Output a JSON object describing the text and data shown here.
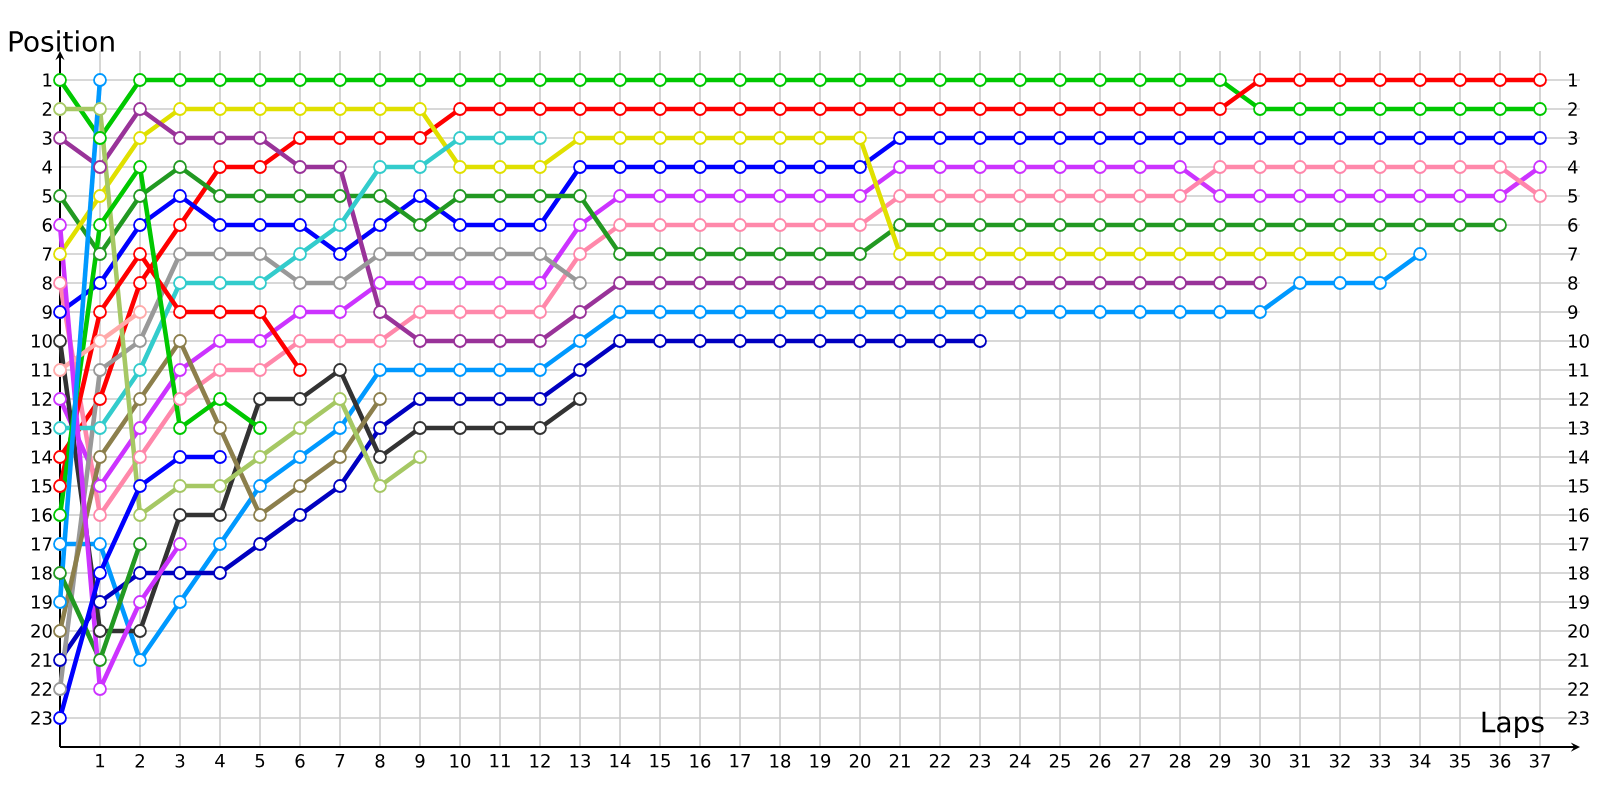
{
  "chart_data": {
    "type": "line",
    "xlabel": "Laps",
    "ylabel": "Position",
    "x": [
      0,
      1,
      2,
      3,
      4,
      5,
      6,
      7,
      8,
      9,
      10,
      11,
      12,
      13,
      14,
      15,
      16,
      17,
      18,
      19,
      20,
      21,
      22,
      23,
      24,
      25,
      26,
      27,
      28,
      29,
      30,
      31,
      32,
      33,
      34,
      35,
      36,
      37
    ],
    "xlim": [
      0,
      38
    ],
    "xticks": [
      1,
      2,
      3,
      4,
      5,
      6,
      7,
      8,
      9,
      10,
      11,
      12,
      13,
      14,
      15,
      16,
      17,
      18,
      19,
      20,
      21,
      22,
      23,
      24,
      25,
      26,
      27,
      28,
      29,
      30,
      31,
      32,
      33,
      34,
      35,
      36,
      37
    ],
    "ylim": [
      24,
      0
    ],
    "yticks": [
      1,
      2,
      3,
      4,
      5,
      6,
      7,
      8,
      9,
      10,
      11,
      12,
      13,
      14,
      15,
      16,
      17,
      18,
      19,
      20,
      21,
      22,
      23
    ],
    "y2lim": [
      24,
      0
    ],
    "y2ticks": [
      1,
      2,
      3,
      4,
      5,
      6,
      7,
      8,
      9,
      10,
      11,
      12,
      13,
      14,
      15,
      16,
      17,
      18,
      19,
      20,
      21,
      22,
      23
    ],
    "grid": true,
    "marker": "circle",
    "line_style": "solid",
    "series": [
      {
        "color": "#00c800",
        "values": [
          1,
          3,
          1,
          1,
          1,
          1,
          1,
          1,
          1,
          1,
          1,
          1,
          1,
          1,
          1,
          1,
          1,
          1,
          1,
          1,
          1,
          1,
          1,
          1,
          1,
          1,
          1,
          1,
          1,
          1,
          2,
          2,
          2,
          2,
          2,
          2,
          2,
          2
        ]
      },
      {
        "color": "#ff0000",
        "values": [
          14,
          12,
          8,
          6,
          4,
          4,
          3,
          3,
          3,
          3,
          2,
          2,
          2,
          2,
          2,
          2,
          2,
          2,
          2,
          2,
          2,
          2,
          2,
          2,
          2,
          2,
          2,
          2,
          2,
          2,
          1,
          1,
          1,
          1,
          1,
          1,
          1,
          1
        ]
      },
      {
        "color": "#0000ff",
        "values": [
          9,
          8,
          6,
          5,
          6,
          6,
          6,
          7,
          6,
          5,
          6,
          6,
          6,
          4,
          4,
          4,
          4,
          4,
          4,
          4,
          4,
          3,
          3,
          3,
          3,
          3,
          3,
          3,
          3,
          3,
          3,
          3,
          3,
          3,
          3,
          3,
          3,
          3
        ]
      },
      {
        "color": "#cc33ff",
        "values": [
          12,
          15,
          13,
          11,
          10,
          10,
          9,
          9,
          8,
          8,
          8,
          8,
          8,
          6,
          5,
          5,
          5,
          5,
          5,
          5,
          5,
          4,
          4,
          4,
          4,
          4,
          4,
          4,
          4,
          5,
          5,
          5,
          5,
          5,
          5,
          5,
          5,
          4
        ]
      },
      {
        "color": "#ff88aa",
        "values": [
          8,
          16,
          14,
          12,
          11,
          11,
          10,
          10,
          10,
          9,
          9,
          9,
          9,
          7,
          6,
          6,
          6,
          6,
          6,
          6,
          6,
          5,
          5,
          5,
          5,
          5,
          5,
          5,
          5,
          4,
          4,
          4,
          4,
          4,
          4,
          4,
          4,
          5
        ]
      },
      {
        "color": "#229922",
        "values": [
          5,
          7,
          5,
          4,
          5,
          5,
          5,
          5,
          5,
          6,
          5,
          5,
          5,
          5,
          7,
          7,
          7,
          7,
          7,
          7,
          7,
          6,
          6,
          6,
          6,
          6,
          6,
          6,
          6,
          6,
          6,
          6,
          6,
          6,
          6,
          6,
          6,
          null
        ]
      },
      {
        "color": "#e0e000",
        "values": [
          7,
          5,
          3,
          2,
          2,
          2,
          2,
          2,
          2,
          2,
          4,
          4,
          4,
          3,
          3,
          3,
          3,
          3,
          3,
          3,
          3,
          7,
          7,
          7,
          7,
          7,
          7,
          7,
          7,
          7,
          7,
          7,
          7,
          7,
          null,
          null,
          null,
          null
        ]
      },
      {
        "color": "#993399",
        "values": [
          3,
          4,
          2,
          3,
          3,
          3,
          4,
          4,
          9,
          10,
          10,
          10,
          10,
          9,
          8,
          8,
          8,
          8,
          8,
          8,
          8,
          8,
          8,
          8,
          8,
          8,
          8,
          8,
          8,
          8,
          8,
          null,
          null,
          null,
          null,
          null,
          null,
          null
        ]
      },
      {
        "color": "#0099ff",
        "values": [
          17,
          17,
          21,
          19,
          17,
          15,
          14,
          13,
          11,
          11,
          11,
          11,
          11,
          10,
          9,
          9,
          9,
          9,
          9,
          9,
          9,
          9,
          9,
          9,
          9,
          9,
          9,
          9,
          9,
          9,
          9,
          8,
          8,
          8,
          7,
          null,
          null,
          null
        ]
      },
      {
        "color": "#0000c0",
        "values": [
          21,
          19,
          18,
          18,
          18,
          17,
          16,
          15,
          13,
          12,
          12,
          12,
          12,
          11,
          10,
          10,
          10,
          10,
          10,
          10,
          10,
          10,
          10,
          10,
          null,
          null,
          null,
          null,
          null,
          null,
          null,
          null,
          null,
          null,
          null,
          null,
          null,
          null
        ]
      },
      {
        "color": "#333333",
        "values": [
          10,
          20,
          20,
          16,
          16,
          12,
          12,
          11,
          14,
          13,
          13,
          13,
          13,
          12,
          null,
          null,
          null,
          null,
          null,
          null,
          null,
          null,
          null,
          null,
          null,
          null,
          null,
          null,
          null,
          null,
          null,
          null,
          null,
          null,
          null,
          null,
          null,
          null
        ]
      },
      {
        "color": "#999999",
        "values": [
          22,
          11,
          10,
          7,
          7,
          7,
          8,
          8,
          7,
          7,
          7,
          7,
          7,
          8,
          null,
          null,
          null,
          null,
          null,
          null,
          null,
          null,
          null,
          null,
          null,
          null,
          null,
          null,
          null,
          null,
          null,
          null,
          null,
          null,
          null,
          null,
          null,
          null
        ]
      },
      {
        "color": "#33cccc",
        "values": [
          13,
          13,
          11,
          8,
          8,
          8,
          7,
          6,
          4,
          4,
          3,
          3,
          3,
          null,
          null,
          null,
          null,
          null,
          null,
          null,
          null,
          null,
          null,
          null,
          null,
          null,
          null,
          null,
          null,
          null,
          null,
          null,
          null,
          null,
          null,
          null,
          null,
          null
        ]
      },
      {
        "color": "#8c7f4c",
        "values": [
          20,
          14,
          12,
          10,
          13,
          16,
          15,
          14,
          12,
          null,
          null,
          null,
          null,
          null,
          null,
          null,
          null,
          null,
          null,
          null,
          null,
          null,
          null,
          null,
          null,
          null,
          null,
          null,
          null,
          null,
          null,
          null,
          null,
          null,
          null,
          null,
          null,
          null
        ]
      },
      {
        "color": "#a6c864",
        "values": [
          2,
          2,
          16,
          15,
          15,
          14,
          13,
          12,
          15,
          14,
          null,
          null,
          null,
          null,
          null,
          null,
          null,
          null,
          null,
          null,
          null,
          null,
          null,
          null,
          null,
          null,
          null,
          null,
          null,
          null,
          null,
          null,
          null,
          null,
          null,
          null,
          null,
          null
        ]
      },
      {
        "color": "#ff0000",
        "values": [
          15,
          9,
          7,
          9,
          9,
          9,
          11,
          null,
          null,
          null,
          null,
          null,
          null,
          null,
          null,
          null,
          null,
          null,
          null,
          null,
          null,
          null,
          null,
          null,
          null,
          null,
          null,
          null,
          null,
          null,
          null,
          null,
          null,
          null,
          null,
          null,
          null,
          null
        ]
      },
      {
        "color": "#00c800",
        "values": [
          16,
          6,
          4,
          13,
          12,
          13,
          null,
          null,
          null,
          null,
          null,
          null,
          null,
          null,
          null,
          null,
          null,
          null,
          null,
          null,
          null,
          null,
          null,
          null,
          null,
          null,
          null,
          null,
          null,
          null,
          null,
          null,
          null,
          null,
          null,
          null,
          null,
          null
        ]
      },
      {
        "color": "#229922",
        "values": [
          18,
          21,
          17,
          null,
          null,
          null,
          null,
          null,
          null,
          null,
          null,
          null,
          null,
          null,
          null,
          null,
          null,
          null,
          null,
          null,
          null,
          null,
          null,
          null,
          null,
          null,
          null,
          null,
          null,
          null,
          null,
          null,
          null,
          null,
          null,
          null,
          null,
          null
        ]
      },
      {
        "color": "#ffaaaa",
        "values": [
          11,
          10,
          9,
          null,
          null,
          null,
          null,
          null,
          null,
          null,
          null,
          null,
          null,
          null,
          null,
          null,
          null,
          null,
          null,
          null,
          null,
          null,
          null,
          null,
          null,
          null,
          null,
          null,
          null,
          null,
          null,
          null,
          null,
          null,
          null,
          null,
          null,
          null
        ]
      },
      {
        "color": "#cc33ff",
        "values": [
          6,
          22,
          19,
          17,
          null,
          null,
          null,
          null,
          null,
          null,
          null,
          null,
          null,
          null,
          null,
          null,
          null,
          null,
          null,
          null,
          null,
          null,
          null,
          null,
          null,
          null,
          null,
          null,
          null,
          null,
          null,
          null,
          null,
          null,
          null,
          null,
          null,
          null
        ]
      },
      {
        "color": "#0000ff",
        "values": [
          23,
          18,
          15,
          14,
          14,
          null,
          null,
          null,
          null,
          null,
          null,
          null,
          null,
          null,
          null,
          null,
          null,
          null,
          null,
          null,
          null,
          null,
          null,
          null,
          null,
          null,
          null,
          null,
          null,
          null,
          null,
          null,
          null,
          null,
          null,
          null,
          null,
          null
        ]
      },
      {
        "color": "#0099ff",
        "values": [
          19,
          1,
          null,
          null,
          null,
          null,
          null,
          null,
          null,
          null,
          null,
          null,
          null,
          null,
          null,
          null,
          null,
          null,
          null,
          null,
          null,
          null,
          null,
          null,
          null,
          null,
          null,
          null,
          null,
          null,
          null,
          null,
          null,
          null,
          null,
          null,
          null,
          null
        ]
      }
    ]
  }
}
